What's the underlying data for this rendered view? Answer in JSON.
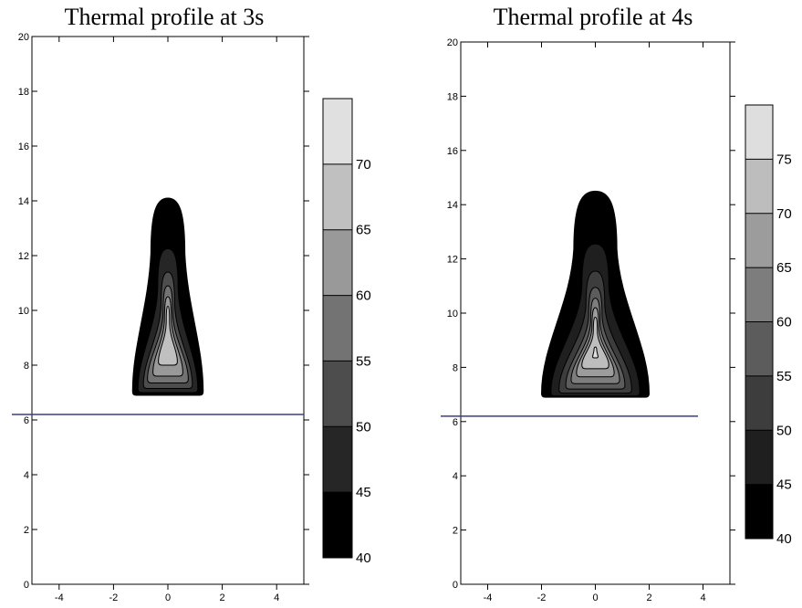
{
  "chart_data": [
    {
      "type": "contour",
      "title": "Thermal profile at 3s",
      "xlim": [
        -5,
        5
      ],
      "ylim": [
        0,
        20
      ],
      "xticks": [
        "-4",
        "-2",
        "0",
        "2",
        "4"
      ],
      "yticks": [
        "0",
        "2",
        "4",
        "6",
        "8",
        "10",
        "12",
        "14",
        "16",
        "18",
        "20"
      ],
      "xtick_values": [
        -4,
        -2,
        0,
        2,
        4
      ],
      "ytick_values": [
        0,
        2,
        4,
        6,
        8,
        10,
        12,
        14,
        16,
        18,
        20
      ],
      "horizontal_line_y": 6.2,
      "colorbar": {
        "levels": [
          40,
          45,
          50,
          55,
          60,
          65,
          70,
          75
        ],
        "labels": [
          "40",
          "45",
          "50",
          "55",
          "60",
          "65",
          "70"
        ],
        "colors": [
          "#000000",
          "#262626",
          "#4d4d4d",
          "#737373",
          "#999999",
          "#c0c0c0",
          "#e0e0e0"
        ]
      },
      "contours": [
        {
          "level": 40,
          "color": "#000000",
          "x": [
            -1.3,
            1.3
          ],
          "y": [
            6.9,
            14.1
          ],
          "top_width": 1.25
        },
        {
          "level": 45,
          "color": "#262626",
          "x": [
            -1.1,
            1.1
          ],
          "y": [
            7.0,
            12.25
          ],
          "top_width": 0.75
        },
        {
          "level": 50,
          "color": "#4d4d4d",
          "x": [
            -0.9,
            0.9
          ],
          "y": [
            7.15,
            11.4
          ],
          "top_width": 0.5
        },
        {
          "level": 55,
          "color": "#737373",
          "x": [
            -0.75,
            0.75
          ],
          "y": [
            7.35,
            10.9
          ],
          "top_width": 0.35
        },
        {
          "level": 60,
          "color": "#999999",
          "x": [
            -0.55,
            0.55
          ],
          "y": [
            7.6,
            10.5
          ],
          "top_width": 0.25
        },
        {
          "level": 65,
          "color": "#c0c0c0",
          "x": [
            -0.35,
            0.35
          ],
          "y": [
            8.0,
            10.15
          ],
          "top_width": 0.12
        }
      ]
    },
    {
      "type": "contour",
      "title": "Thermal profile at 4s",
      "xlim": [
        -5,
        5
      ],
      "ylim": [
        0,
        20
      ],
      "xticks": [
        "-4",
        "-2",
        "0",
        "2",
        "4"
      ],
      "yticks": [
        "0",
        "2",
        "4",
        "6",
        "8",
        "10",
        "12",
        "14",
        "16",
        "18",
        "20"
      ],
      "xtick_values": [
        -4,
        -2,
        0,
        2,
        4
      ],
      "ytick_values": [
        0,
        2,
        4,
        6,
        8,
        10,
        12,
        14,
        16,
        18,
        20
      ],
      "horizontal_line_y": 6.2,
      "colorbar": {
        "levels": [
          40,
          45,
          50,
          55,
          60,
          65,
          70,
          75,
          80
        ],
        "labels": [
          "40",
          "45",
          "50",
          "55",
          "60",
          "65",
          "70",
          "75"
        ],
        "colors": [
          "#000000",
          "#1f1f1f",
          "#3d3d3d",
          "#5c5c5c",
          "#7d7d7d",
          "#9c9c9c",
          "#bdbdbd",
          "#dedede"
        ]
      },
      "contours": [
        {
          "level": 40,
          "color": "#000000",
          "x": [
            -2.0,
            2.0
          ],
          "y": [
            6.9,
            14.5
          ],
          "top_width": 1.6
        },
        {
          "level": 45,
          "color": "#1f1f1f",
          "x": [
            -1.65,
            1.65
          ],
          "y": [
            6.95,
            12.55
          ],
          "top_width": 1.0
        },
        {
          "level": 50,
          "color": "#3d3d3d",
          "x": [
            -1.35,
            1.35
          ],
          "y": [
            7.05,
            11.55
          ],
          "top_width": 0.7
        },
        {
          "level": 55,
          "color": "#5c5c5c",
          "x": [
            -1.1,
            1.1
          ],
          "y": [
            7.2,
            10.95
          ],
          "top_width": 0.5
        },
        {
          "level": 60,
          "color": "#7d7d7d",
          "x": [
            -0.9,
            0.9
          ],
          "y": [
            7.4,
            10.55
          ],
          "top_width": 0.35
        },
        {
          "level": 65,
          "color": "#9c9c9c",
          "x": [
            -0.7,
            0.7
          ],
          "y": [
            7.65,
            10.2
          ],
          "top_width": 0.25
        },
        {
          "level": 70,
          "color": "#bdbdbd",
          "x": [
            -0.5,
            0.5
          ],
          "y": [
            7.95,
            9.85
          ],
          "top_width": 0.15
        },
        {
          "level": 75,
          "color": "#dedede",
          "x": [
            -0.1,
            0.1
          ],
          "y": [
            8.35,
            8.75
          ],
          "top_width": 0.1
        }
      ]
    }
  ]
}
